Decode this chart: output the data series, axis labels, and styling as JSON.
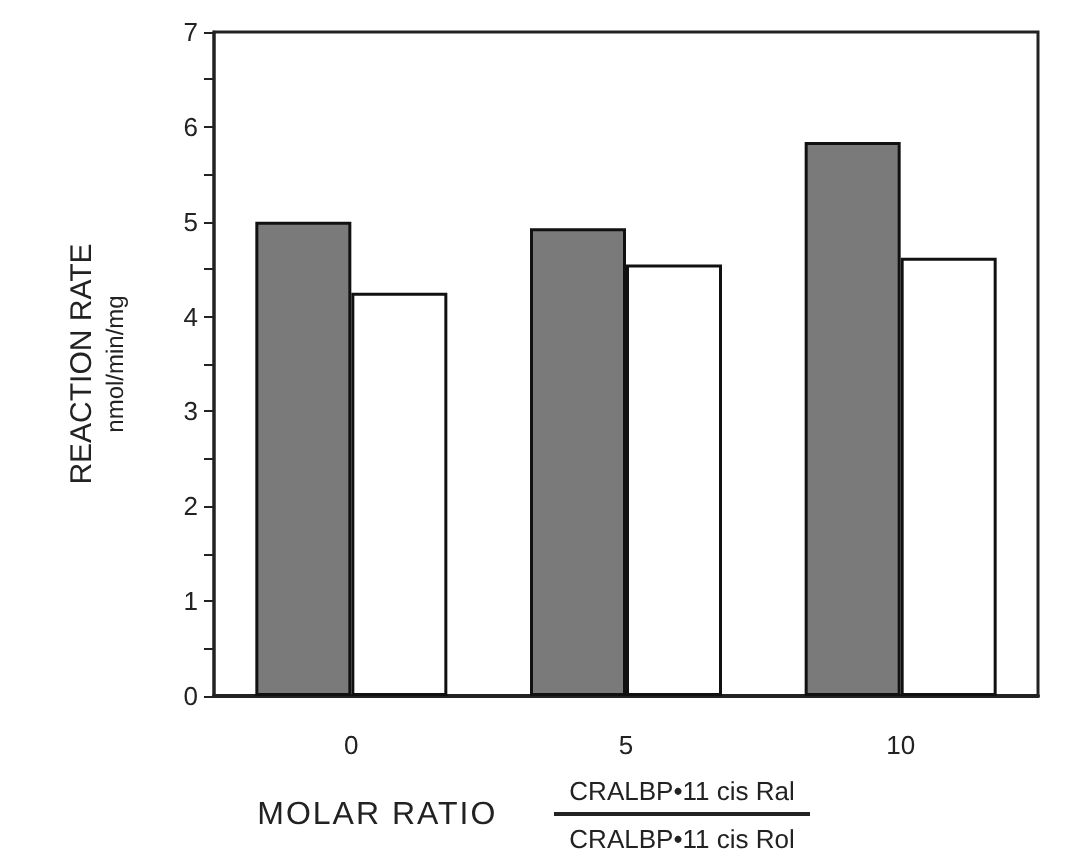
{
  "chart_data": {
    "type": "bar",
    "categories": [
      "0",
      "5",
      "10"
    ],
    "series": [
      {
        "color": "#7a7a7a",
        "values": [
          5.0,
          4.93,
          5.84
        ]
      },
      {
        "color": "#ffffff",
        "values": [
          4.25,
          4.55,
          4.62
        ]
      }
    ],
    "ylabel": "REACTION RATE\nnmol/min/mg",
    "xlabel": "MOLAR RATIO",
    "annotations": [
      "CRALBP•11 cis Ral",
      "CRALBP•11 cis Rol"
    ],
    "ylim": [
      0,
      7
    ],
    "yticks": [
      0,
      1,
      2,
      3,
      4,
      5,
      6,
      7
    ],
    "grid": false
  }
}
